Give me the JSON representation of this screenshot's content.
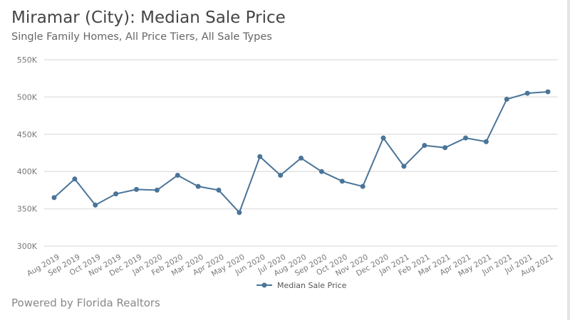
{
  "title": "Miramar (City): Median Sale Price",
  "subtitle": "Single Family Homes, All Price Tiers, All Sale Types",
  "footer": "Powered by Florida Realtors",
  "colors": {
    "series": "#4a7499",
    "grid": "#e3e3e3",
    "tick": "#777777"
  },
  "chart_data": {
    "type": "line",
    "title": "Miramar (City): Median Sale Price",
    "subtitle": "Single Family Homes, All Price Tiers, All Sale Types",
    "categories": [
      "Aug 2019",
      "Sep 2019",
      "Oct 2019",
      "Nov 2019",
      "Dec 2019",
      "Jan 2020",
      "Feb 2020",
      "Mar 2020",
      "Apr 2020",
      "May 2020",
      "Jun 2020",
      "Jul 2020",
      "Aug 2020",
      "Sep 2020",
      "Oct 2020",
      "Nov 2020",
      "Dec 2020",
      "Jan 2021",
      "Feb 2021",
      "Mar 2021",
      "Apr 2021",
      "May 2021",
      "Jun 2021",
      "Jul 2021",
      "Aug 2021"
    ],
    "series": [
      {
        "name": "Median Sale Price",
        "values": [
          365000,
          390000,
          355000,
          370000,
          376000,
          375000,
          395000,
          380000,
          375000,
          345000,
          420000,
          395000,
          418000,
          400000,
          387000,
          380000,
          445000,
          407000,
          435000,
          432000,
          445000,
          440000,
          497000,
          505000,
          507000
        ]
      }
    ],
    "ylim": [
      300000,
      550000
    ],
    "yticks": [
      300000,
      350000,
      400000,
      450000,
      500000,
      550000
    ],
    "ytick_labels": [
      "300K",
      "350K",
      "400K",
      "450K",
      "500K",
      "550K"
    ],
    "grid": true,
    "legend": "bottom"
  }
}
